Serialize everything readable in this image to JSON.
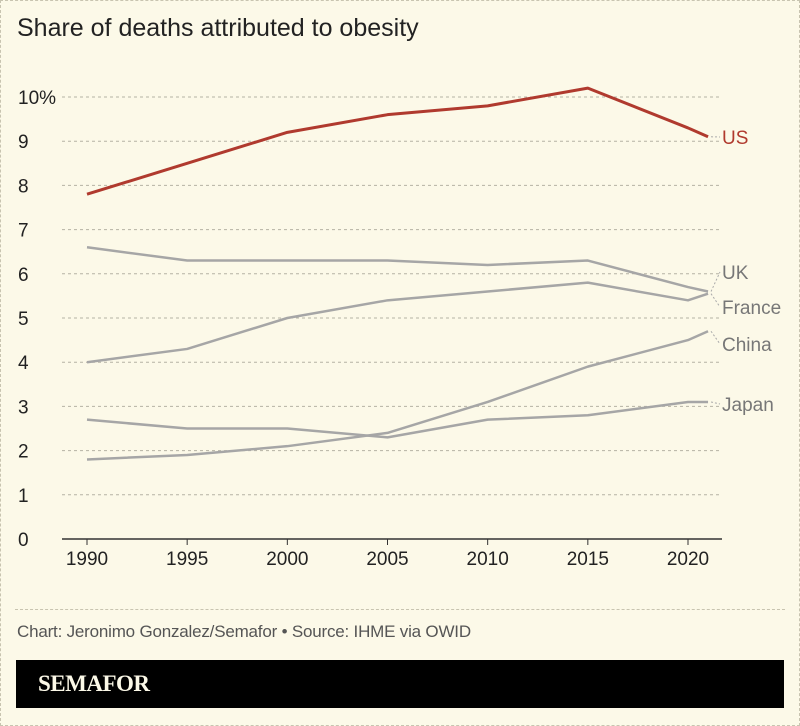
{
  "chart_data": {
    "type": "line",
    "title": "Share of deaths attributed to obesity",
    "x": [
      1990,
      1995,
      2000,
      2005,
      2010,
      2015,
      2020,
      2021
    ],
    "xticks": [
      "1990",
      "1995",
      "2000",
      "2005",
      "2010",
      "2015",
      "2020"
    ],
    "yticks": [
      "0",
      "1",
      "2",
      "3",
      "4",
      "5",
      "6",
      "7",
      "8",
      "9",
      "10%"
    ],
    "ylim": [
      0,
      10
    ],
    "xlim": [
      1990,
      2021
    ],
    "grid": true,
    "series": [
      {
        "name": "US",
        "color": "#b03a2e",
        "values": [
          7.8,
          8.5,
          9.2,
          9.6,
          9.8,
          10.2,
          9.3,
          9.1
        ]
      },
      {
        "name": "UK",
        "color": "#a6a6a6",
        "values": [
          6.6,
          6.3,
          6.3,
          6.3,
          6.2,
          6.3,
          5.7,
          5.6
        ]
      },
      {
        "name": "France",
        "color": "#a6a6a6",
        "values": [
          4.0,
          4.3,
          5.0,
          5.4,
          5.6,
          5.8,
          5.4,
          5.55
        ]
      },
      {
        "name": "China",
        "color": "#a6a6a6",
        "values": [
          1.8,
          1.9,
          2.1,
          2.4,
          3.1,
          3.9,
          4.5,
          4.7
        ]
      },
      {
        "name": "Japan",
        "color": "#a6a6a6",
        "values": [
          2.7,
          2.5,
          2.5,
          2.3,
          2.7,
          2.8,
          3.1,
          3.1
        ]
      }
    ]
  },
  "footer": {
    "credit": "Chart: Jeronimo Gonzalez/Semafor • Source: IHME via OWID",
    "logo": "SEMAFOR"
  }
}
